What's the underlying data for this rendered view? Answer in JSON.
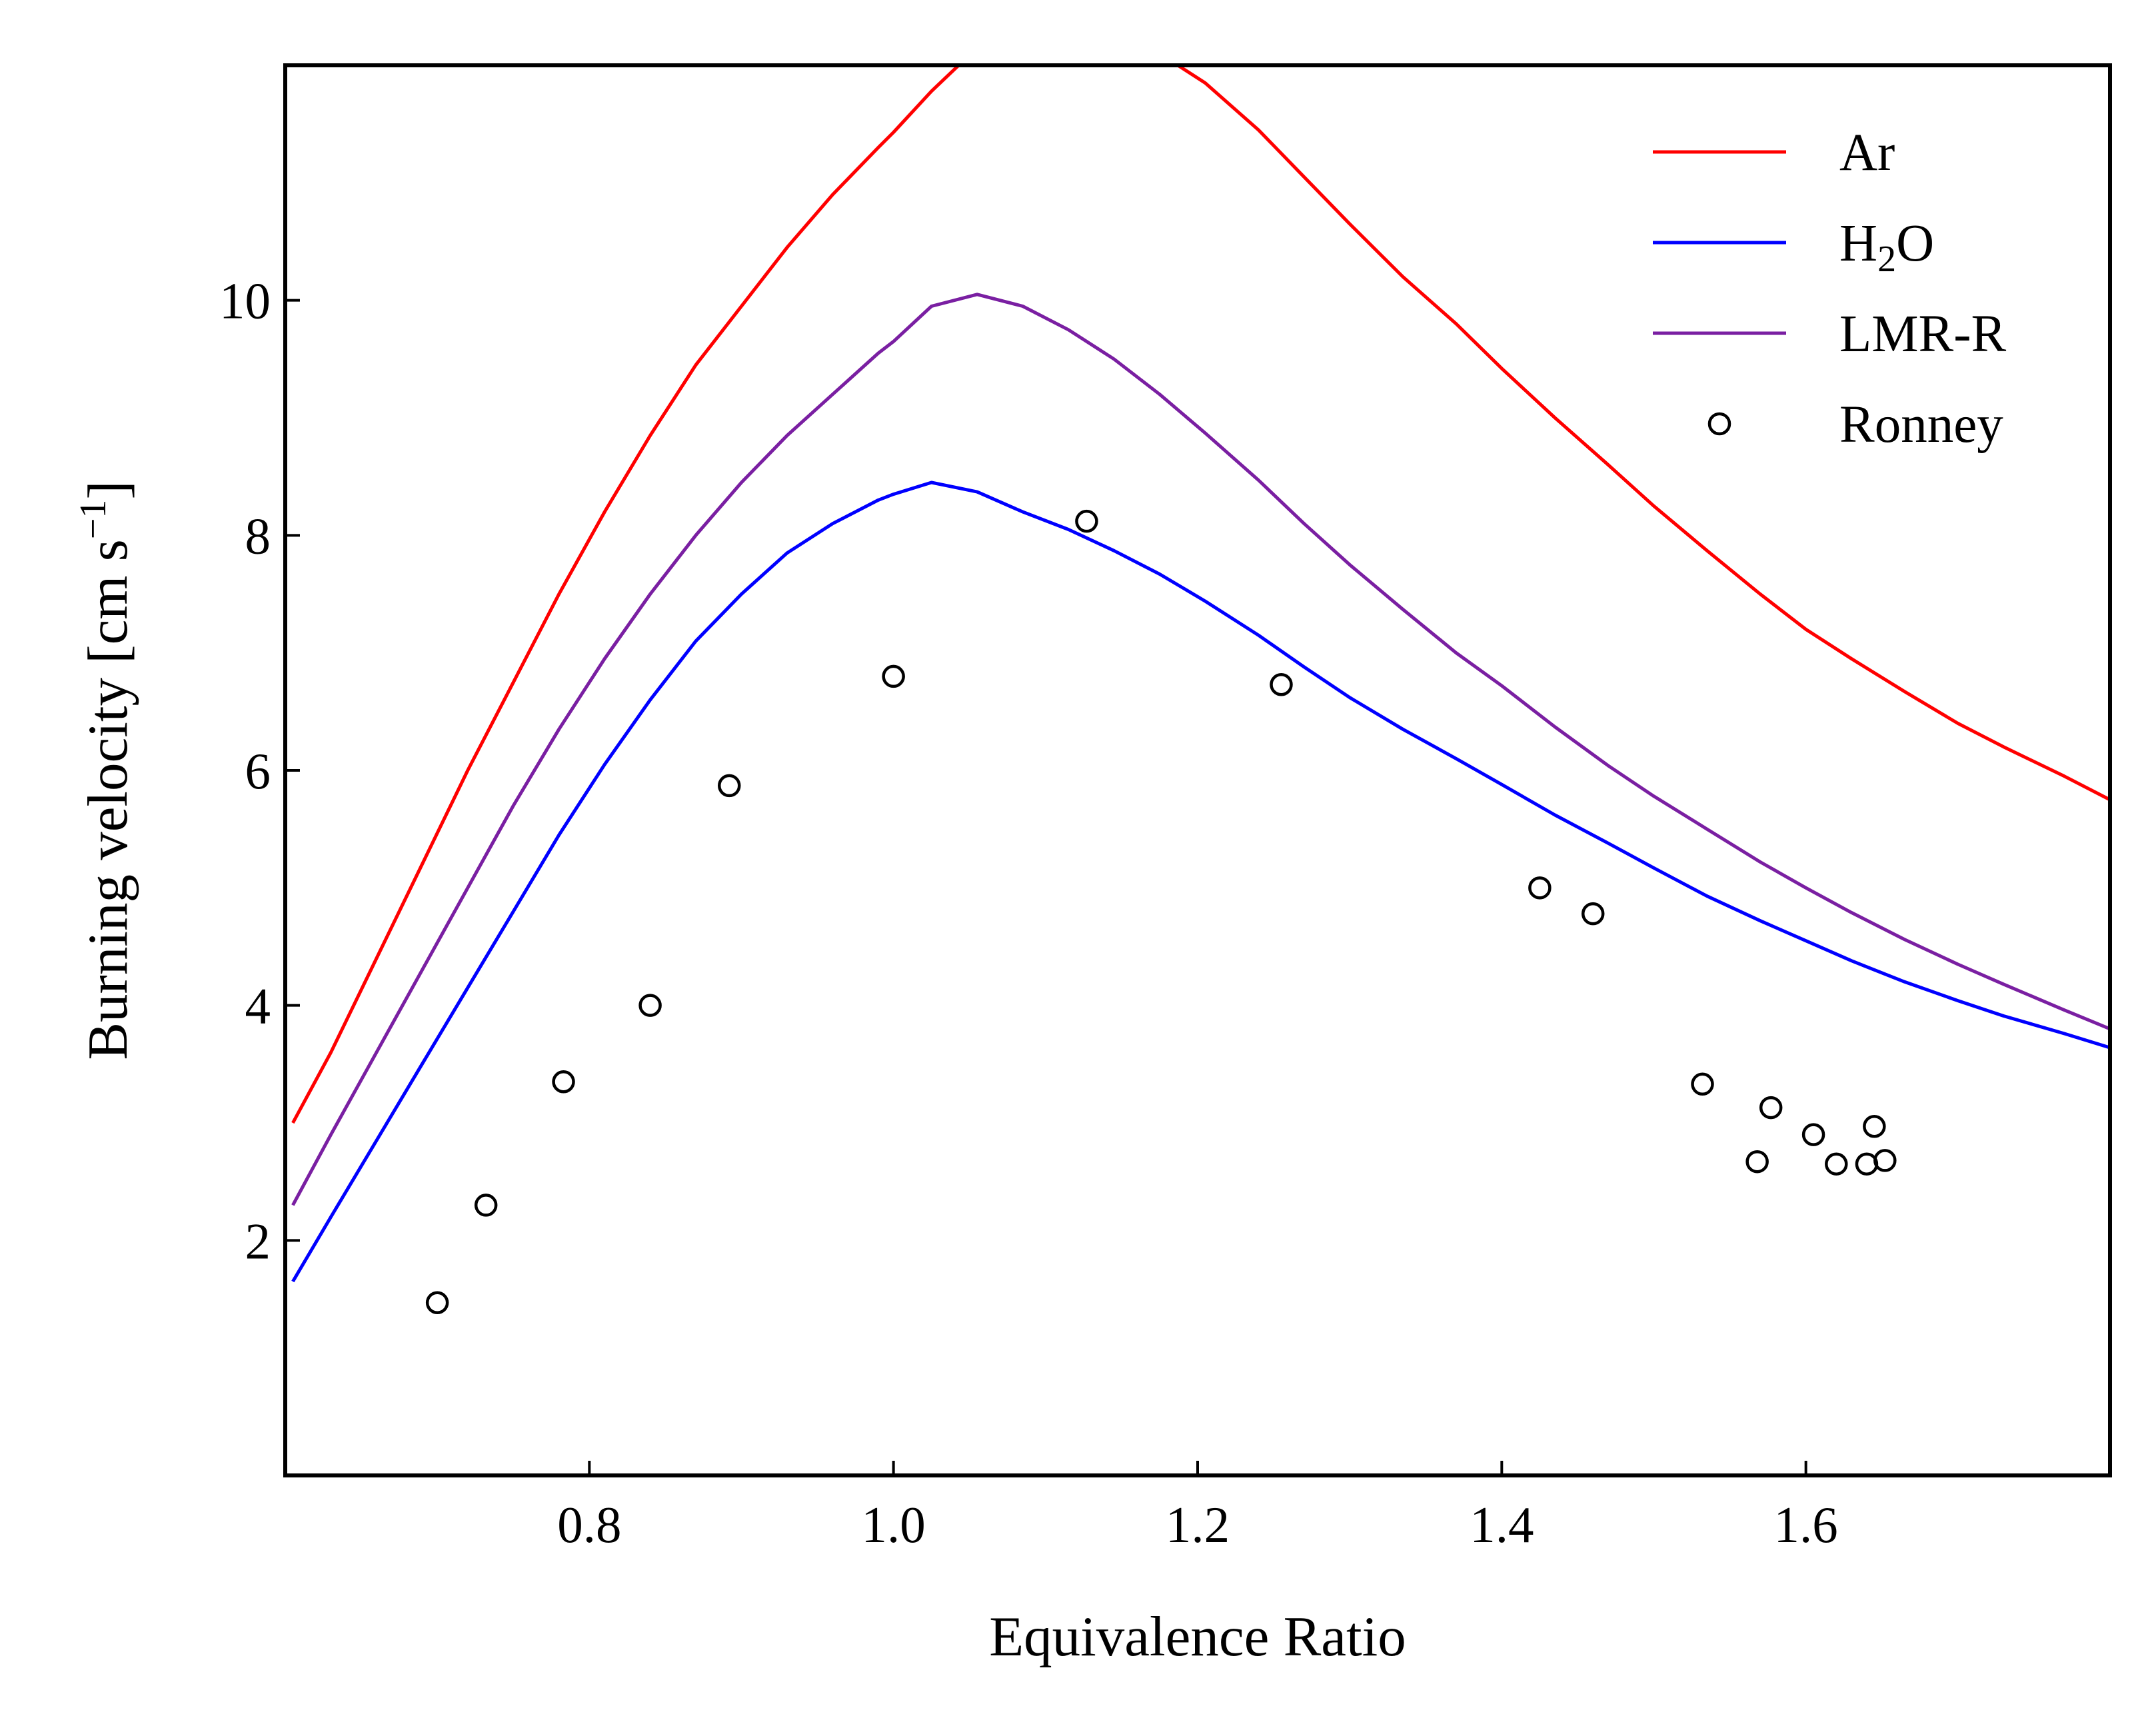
{
  "chart_data": {
    "type": "line",
    "xlabel": "Equivalence Ratio",
    "ylabel": "Burning velocity [cm s",
    "ylabel_sup": "−1",
    "ylabel_end": "]",
    "xlim": [
      0.6,
      1.8
    ],
    "ylim": [
      0,
      12
    ],
    "x_ticks": [
      0.8,
      1.0,
      1.2,
      1.4,
      1.6
    ],
    "x_tick_labels": [
      "0.8",
      "1.0",
      "1.2",
      "1.4",
      "1.6"
    ],
    "y_ticks": [
      2,
      4,
      6,
      8,
      10
    ],
    "y_tick_labels": [
      "2",
      "4",
      "6",
      "8",
      "10"
    ],
    "grid": false,
    "legend_position": "top-right",
    "series": [
      {
        "name": "Ar",
        "legend_text": [
          "Ar"
        ],
        "style": "line",
        "color": "#ff0000",
        "x": [
          0.605,
          0.63,
          0.66,
          0.69,
          0.72,
          0.75,
          0.78,
          0.81,
          0.84,
          0.87,
          0.9,
          0.93,
          0.96,
          0.99,
          1.0,
          1.025,
          1.055,
          1.085,
          1.115,
          1.145,
          1.175,
          1.205,
          1.24,
          1.27,
          1.3,
          1.335,
          1.37,
          1.4,
          1.435,
          1.47,
          1.5,
          1.535,
          1.57,
          1.6,
          1.63,
          1.665,
          1.7,
          1.73,
          1.77,
          1.8
        ],
        "y": [
          3.0,
          3.6,
          4.4,
          5.2,
          6.0,
          6.75,
          7.5,
          8.2,
          8.85,
          9.45,
          9.95,
          10.45,
          10.9,
          11.3,
          11.43,
          11.78,
          12.15,
          12.33,
          12.35,
          12.28,
          12.1,
          11.85,
          11.45,
          11.05,
          10.65,
          10.2,
          9.8,
          9.42,
          9.0,
          8.6,
          8.25,
          7.87,
          7.5,
          7.2,
          6.95,
          6.67,
          6.4,
          6.2,
          5.95,
          5.75
        ]
      },
      {
        "name": "H2O",
        "legend_text": [
          "H",
          "2",
          "O"
        ],
        "style": "line",
        "color": "#0000ff",
        "x": [
          0.605,
          0.63,
          0.66,
          0.69,
          0.72,
          0.75,
          0.78,
          0.81,
          0.84,
          0.87,
          0.9,
          0.93,
          0.96,
          0.99,
          1.0,
          1.025,
          1.055,
          1.085,
          1.115,
          1.145,
          1.175,
          1.205,
          1.24,
          1.27,
          1.3,
          1.335,
          1.37,
          1.4,
          1.435,
          1.47,
          1.5,
          1.535,
          1.57,
          1.6,
          1.63,
          1.665,
          1.7,
          1.73,
          1.77,
          1.8
        ],
        "y": [
          1.65,
          2.2,
          2.85,
          3.5,
          4.15,
          4.8,
          5.45,
          6.05,
          6.6,
          7.1,
          7.5,
          7.85,
          8.1,
          8.3,
          8.35,
          8.45,
          8.37,
          8.2,
          8.05,
          7.87,
          7.67,
          7.44,
          7.15,
          6.88,
          6.62,
          6.35,
          6.1,
          5.88,
          5.62,
          5.38,
          5.17,
          4.93,
          4.72,
          4.55,
          4.38,
          4.2,
          4.04,
          3.91,
          3.76,
          3.64
        ]
      },
      {
        "name": "LMR-R",
        "legend_text": [
          "LMR-R"
        ],
        "style": "line",
        "color": "#7a1fa2",
        "x": [
          0.605,
          0.63,
          0.66,
          0.69,
          0.72,
          0.75,
          0.78,
          0.81,
          0.84,
          0.87,
          0.9,
          0.93,
          0.96,
          0.99,
          1.0,
          1.025,
          1.055,
          1.085,
          1.115,
          1.145,
          1.175,
          1.205,
          1.24,
          1.27,
          1.3,
          1.335,
          1.37,
          1.4,
          1.435,
          1.47,
          1.5,
          1.535,
          1.57,
          1.6,
          1.63,
          1.665,
          1.7,
          1.73,
          1.77,
          1.8
        ],
        "y": [
          2.3,
          2.9,
          3.6,
          4.3,
          5.0,
          5.7,
          6.35,
          6.95,
          7.5,
          8.0,
          8.45,
          8.85,
          9.2,
          9.55,
          9.65,
          9.95,
          10.05,
          9.95,
          9.75,
          9.5,
          9.2,
          8.87,
          8.47,
          8.1,
          7.75,
          7.37,
          7.0,
          6.72,
          6.37,
          6.04,
          5.78,
          5.5,
          5.22,
          5.0,
          4.79,
          4.56,
          4.35,
          4.18,
          3.96,
          3.8
        ]
      },
      {
        "name": "Ronney",
        "legend_text": [
          "Ronney"
        ],
        "style": "markers",
        "color": "#000000",
        "x": [
          0.7,
          0.732,
          0.783,
          0.84,
          0.892,
          1.0,
          1.127,
          1.255,
          1.425,
          1.46,
          1.532,
          1.568,
          1.577,
          1.605,
          1.62,
          1.64,
          1.645,
          1.652
        ],
        "y": [
          1.47,
          2.3,
          3.35,
          4.0,
          5.87,
          6.8,
          8.12,
          6.73,
          5.0,
          4.78,
          3.33,
          2.67,
          3.13,
          2.9,
          2.65,
          2.65,
          2.97,
          2.68
        ]
      }
    ]
  }
}
